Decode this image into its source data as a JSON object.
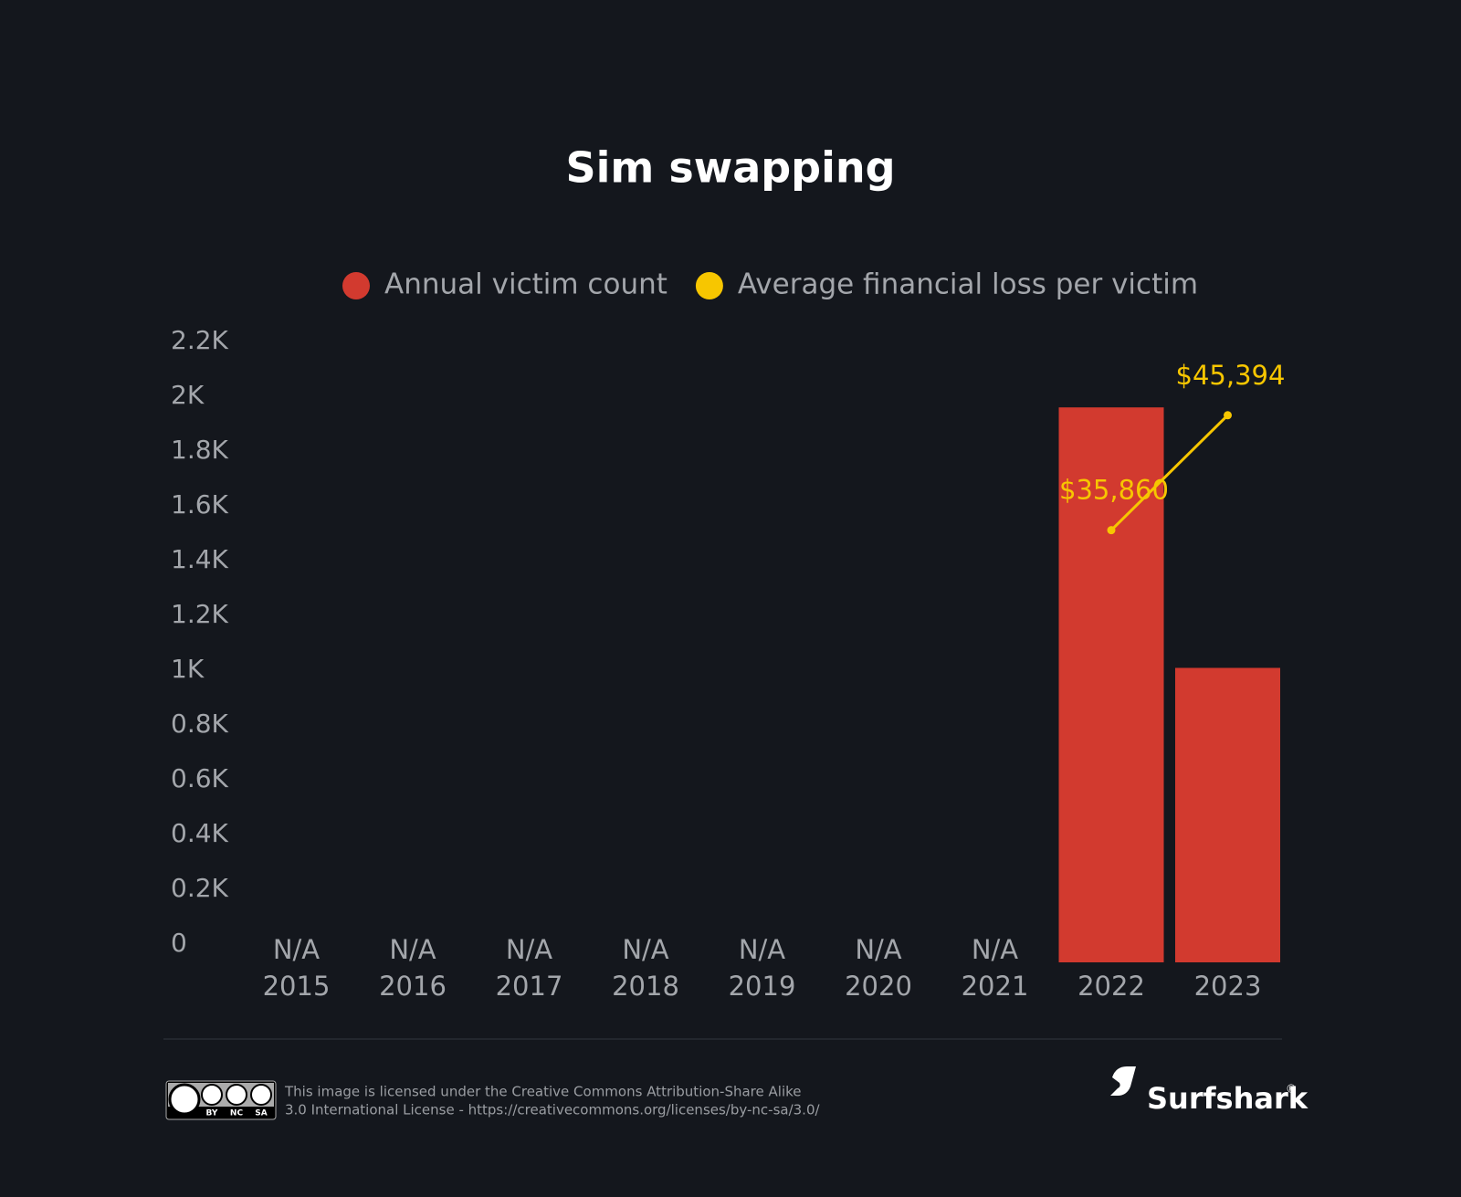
{
  "chart_data": {
    "type": "bar-line",
    "title": "Sim swapping",
    "categories": [
      "2015",
      "2016",
      "2017",
      "2018",
      "2019",
      "2020",
      "2021",
      "2022",
      "2023"
    ],
    "series": [
      {
        "name": "Annual victim count",
        "type": "bar",
        "color": "#d23a2f",
        "values": [
          null,
          null,
          null,
          null,
          null,
          null,
          null,
          2026,
          1075
        ],
        "value_labels": [
          "N/A",
          "N/A",
          "N/A",
          "N/A",
          "N/A",
          "N/A",
          "N/A",
          null,
          null
        ]
      },
      {
        "name": "Average financial loss per victim",
        "type": "line",
        "axis": "y2",
        "color": "#f7c600",
        "values": [
          null,
          null,
          null,
          null,
          null,
          null,
          null,
          35860,
          45394
        ],
        "value_labels": [
          null,
          null,
          null,
          null,
          null,
          null,
          null,
          "$35,860",
          "$45,394"
        ]
      }
    ],
    "ylim": [
      0,
      2200
    ],
    "yticks": [
      0,
      {
        "value": 200,
        "label": "0.2K"
      },
      {
        "value": 400,
        "label": "0.4K"
      },
      {
        "value": 600,
        "label": "0.6K"
      },
      {
        "value": 800,
        "label": "0.8K"
      },
      {
        "value": 1000,
        "label": "1K"
      },
      {
        "value": 1200,
        "label": "1.2K"
      },
      {
        "value": 1400,
        "label": "1.4K"
      },
      {
        "value": 1600,
        "label": "1.6K"
      },
      {
        "value": 1800,
        "label": "1.8K"
      },
      {
        "value": 2000,
        "label": "2K"
      },
      {
        "value": 2200,
        "label": "2.2K"
      }
    ],
    "y2lim": [
      0,
      50000
    ],
    "grid": false
  },
  "footer": {
    "license_text": [
      "This image is licensed under the Creative Commons Attribution-Share Alike",
      "3.0 International License - https://creativecommons.org/licenses/by-nc-sa/3.0/"
    ],
    "badge": [
      "BY",
      "NC",
      "SA"
    ],
    "brand": "Surfshark",
    "brand_mark": "®"
  }
}
